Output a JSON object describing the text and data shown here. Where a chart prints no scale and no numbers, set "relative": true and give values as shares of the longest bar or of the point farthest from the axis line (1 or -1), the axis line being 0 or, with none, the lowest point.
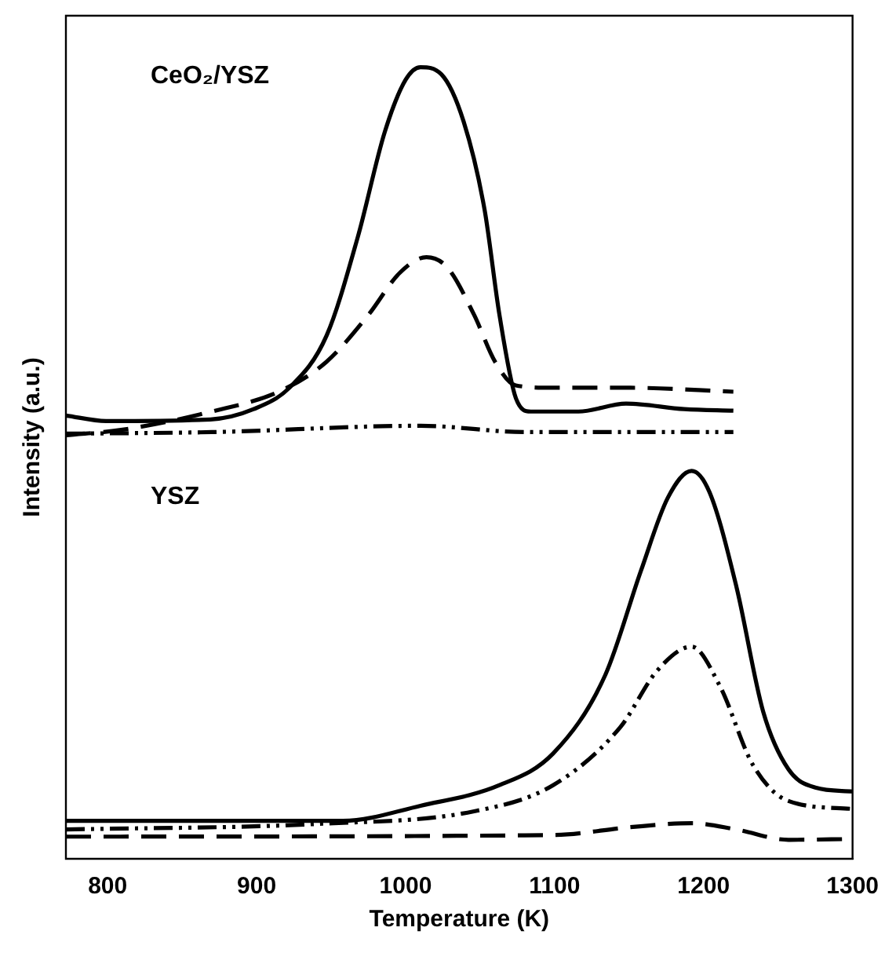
{
  "chart_data": {
    "type": "line",
    "xlabel": "Temperature (K)",
    "ylabel": "Intensity (a.u.)",
    "relative": true,
    "xlim": [
      772,
      1300
    ],
    "xticks": [
      800,
      900,
      1000,
      1100,
      1200,
      1300
    ],
    "tick_labels": "x",
    "grid": false,
    "legend": false,
    "marker": "none",
    "annotations": [
      "CeO₂/YSZ",
      "YSZ"
    ],
    "series": [
      {
        "color": "#000000",
        "line_style": "solid",
        "x": [
          772,
          799,
          869,
          898,
          922,
          947,
          968,
          986,
          1000,
          1010,
          1024,
          1039,
          1053,
          1063,
          1074,
          1084,
          1116,
          1148,
          1187,
          1220
        ],
        "values": [
          0.56,
          0.553,
          0.555,
          0.568,
          0.595,
          0.661,
          0.786,
          0.918,
          0.984,
          1.0,
          0.991,
          0.931,
          0.82,
          0.687,
          0.582,
          0.565,
          0.565,
          0.575,
          0.568,
          0.566
        ]
      },
      {
        "color": "#000000",
        "line_style": "dashed",
        "x": [
          772,
          810,
          870,
          916,
          947,
          975,
          996,
          1014,
          1028,
          1046,
          1060,
          1074,
          1099,
          1151,
          1220
        ],
        "values": [
          0.535,
          0.542,
          0.565,
          0.591,
          0.628,
          0.687,
          0.74,
          0.76,
          0.747,
          0.687,
          0.628,
          0.598,
          0.595,
          0.595,
          0.59
        ]
      },
      {
        "color": "#000000",
        "line_style": "dotted",
        "x": [
          772,
          870,
          1010,
          1081,
          1220
        ],
        "values": [
          0.537,
          0.539,
          0.547,
          0.539,
          0.539
        ]
      },
      {
        "color": "#000000",
        "line_style": "solid",
        "x": [
          772,
          958,
          1010,
          1063,
          1099,
          1134,
          1158,
          1176,
          1192,
          1204,
          1222,
          1240,
          1257,
          1275,
          1300
        ],
        "values": [
          0.048,
          0.048,
          0.067,
          0.093,
          0.133,
          0.232,
          0.364,
          0.456,
          0.49,
          0.463,
          0.344,
          0.186,
          0.113,
          0.09,
          0.085
        ]
      },
      {
        "color": "#000000",
        "line_style": "dotted",
        "x": [
          772,
          940,
          1046,
          1099,
          1144,
          1169,
          1192,
          1211,
          1233,
          1257,
          1300
        ],
        "values": [
          0.037,
          0.044,
          0.06,
          0.093,
          0.166,
          0.238,
          0.268,
          0.218,
          0.119,
          0.073,
          0.063
        ]
      },
      {
        "color": "#000000",
        "line_style": "dashed",
        "x": [
          772,
          1099,
          1151,
          1192,
          1222,
          1257,
          1300
        ],
        "values": [
          0.028,
          0.03,
          0.04,
          0.045,
          0.037,
          0.024,
          0.025
        ]
      }
    ]
  }
}
